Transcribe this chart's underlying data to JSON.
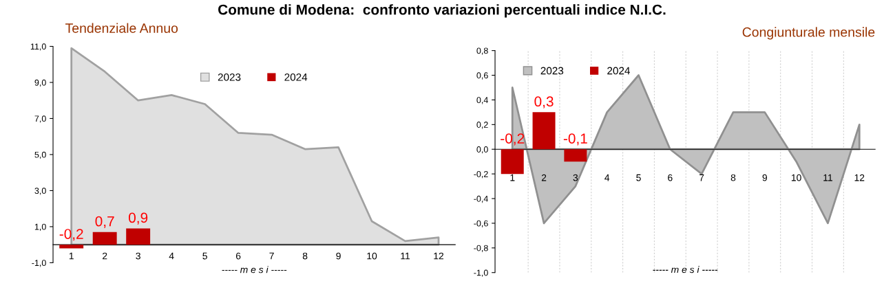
{
  "chart_data": [
    {
      "type": "area",
      "title": "Comune di Modena:  confronto variazioni percentuali indice N.I.C.",
      "subtitle": "Tendenziale Annuo",
      "xlabel": "----- m e s i -----",
      "categories": [
        "1",
        "2",
        "3",
        "4",
        "5",
        "6",
        "7",
        "8",
        "9",
        "10",
        "11",
        "12"
      ],
      "series": [
        {
          "name": "2023",
          "color": "#e0e0e0",
          "values": [
            10.9,
            9.6,
            8.0,
            8.3,
            7.8,
            6.2,
            6.1,
            5.3,
            5.4,
            1.3,
            0.2,
            0.4
          ]
        },
        {
          "name": "2024",
          "type": "bar",
          "color": "#c00000",
          "values": [
            -0.2,
            0.7,
            0.9,
            null,
            null,
            null,
            null,
            null,
            null,
            null,
            null,
            null
          ],
          "value_labels": [
            "-0,2",
            "0,7",
            "0,9",
            null,
            null,
            null,
            null,
            null,
            null,
            null,
            null,
            null
          ]
        }
      ],
      "ylim": [
        -1,
        11
      ],
      "yticks": [
        {
          "value": -1,
          "label": "-1,0"
        },
        {
          "value": 1,
          "label": "1,0"
        },
        {
          "value": 3,
          "label": "3,0"
        },
        {
          "value": 5,
          "label": "5,0"
        },
        {
          "value": 7,
          "label": "7,0"
        },
        {
          "value": 9,
          "label": "9,0"
        },
        {
          "value": 11,
          "label": "11,0"
        }
      ],
      "grid": false,
      "legend": "top"
    },
    {
      "type": "area",
      "subtitle": "Congiunturale mensile",
      "xlabel": "----- m e s i -----",
      "categories": [
        "1",
        "2",
        "3",
        "4",
        "5",
        "6",
        "7",
        "8",
        "9",
        "10",
        "11",
        "12"
      ],
      "series": [
        {
          "name": "2023",
          "color": "#c0c0c0",
          "values": [
            0.5,
            -0.6,
            -0.3,
            0.3,
            0.6,
            0.0,
            -0.2,
            0.3,
            0.3,
            -0.1,
            -0.6,
            0.2
          ]
        },
        {
          "name": "2024",
          "type": "bar",
          "color": "#c00000",
          "values": [
            -0.2,
            0.3,
            -0.1,
            null,
            null,
            null,
            null,
            null,
            null,
            null,
            null,
            null
          ],
          "value_labels": [
            "-0,2",
            "0,3",
            "-0,1",
            null,
            null,
            null,
            null,
            null,
            null,
            null,
            null,
            null
          ]
        }
      ],
      "ylim": [
        -1.0,
        0.8
      ],
      "yticks": [
        {
          "value": -1.0,
          "label": "-1,0"
        },
        {
          "value": -0.8,
          "label": "-0,8"
        },
        {
          "value": -0.6,
          "label": "-0,6"
        },
        {
          "value": -0.4,
          "label": "-0,4"
        },
        {
          "value": -0.2,
          "label": "-0,2"
        },
        {
          "value": 0.0,
          "label": "0,0"
        },
        {
          "value": 0.2,
          "label": "0,2"
        },
        {
          "value": 0.4,
          "label": "0,4"
        },
        {
          "value": 0.6,
          "label": "0,6"
        },
        {
          "value": 0.8,
          "label": "0,8"
        }
      ],
      "grid": "x",
      "legend": "top left"
    }
  ]
}
